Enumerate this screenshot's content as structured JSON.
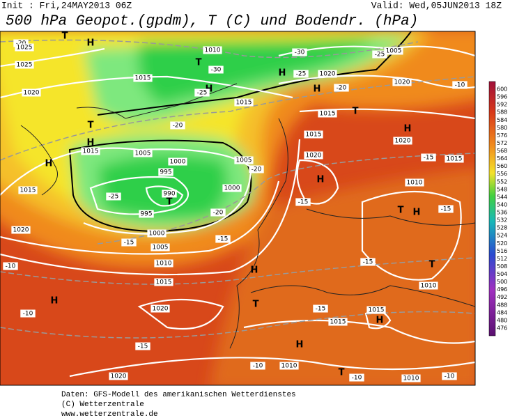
{
  "header": {
    "init": "Init : Fri,24MAY2013 06Z",
    "valid": "Valid: Wed,05JUN2013 18Z",
    "title": "500 hPa Geopot.(gpdm), T (C) und Bodendr. (hPa)"
  },
  "colorbar": {
    "labels": [
      600,
      596,
      592,
      588,
      584,
      580,
      576,
      572,
      568,
      564,
      560,
      556,
      552,
      548,
      544,
      540,
      536,
      532,
      528,
      524,
      520,
      516,
      512,
      508,
      504,
      500,
      496,
      492,
      488,
      484,
      480,
      476
    ]
  },
  "map_labels": [
    "H",
    "T",
    "-20",
    "1025",
    "1025",
    "1020",
    "1015",
    "T",
    "H",
    "1015",
    "H",
    "1015",
    "1020",
    "-10",
    "H",
    "-10",
    "1020",
    "-15",
    "1020",
    "-10",
    "1010",
    "T",
    "-10",
    "1010",
    "-10",
    "H",
    "T",
    "H",
    "1015",
    "-15",
    "H",
    "1015",
    "1010",
    "1015",
    "1005",
    "1000",
    "-15",
    "995",
    "990",
    "T",
    "995",
    "-25",
    "1000",
    "1005",
    "1000",
    "1005",
    "-20",
    "-20",
    "-15",
    "1015",
    "T",
    "1015",
    "1020",
    "H",
    "-15",
    "1010",
    "T",
    "H",
    "H",
    "1020",
    "-15",
    "1015",
    "-10",
    "1020",
    "1005",
    "-25",
    "-30",
    "1010",
    "T",
    "-30",
    "H",
    "H",
    "-25",
    "1020",
    "H",
    "-20",
    "-25",
    "1015",
    "-20",
    "-15",
    "T",
    "1010",
    "-15"
  ],
  "footer": [
    "Daten: GFS-Modell des amerikanischen Wetterdienstes",
    "(C) Wetterzentrale",
    "www.wetterzentrale.de"
  ]
}
